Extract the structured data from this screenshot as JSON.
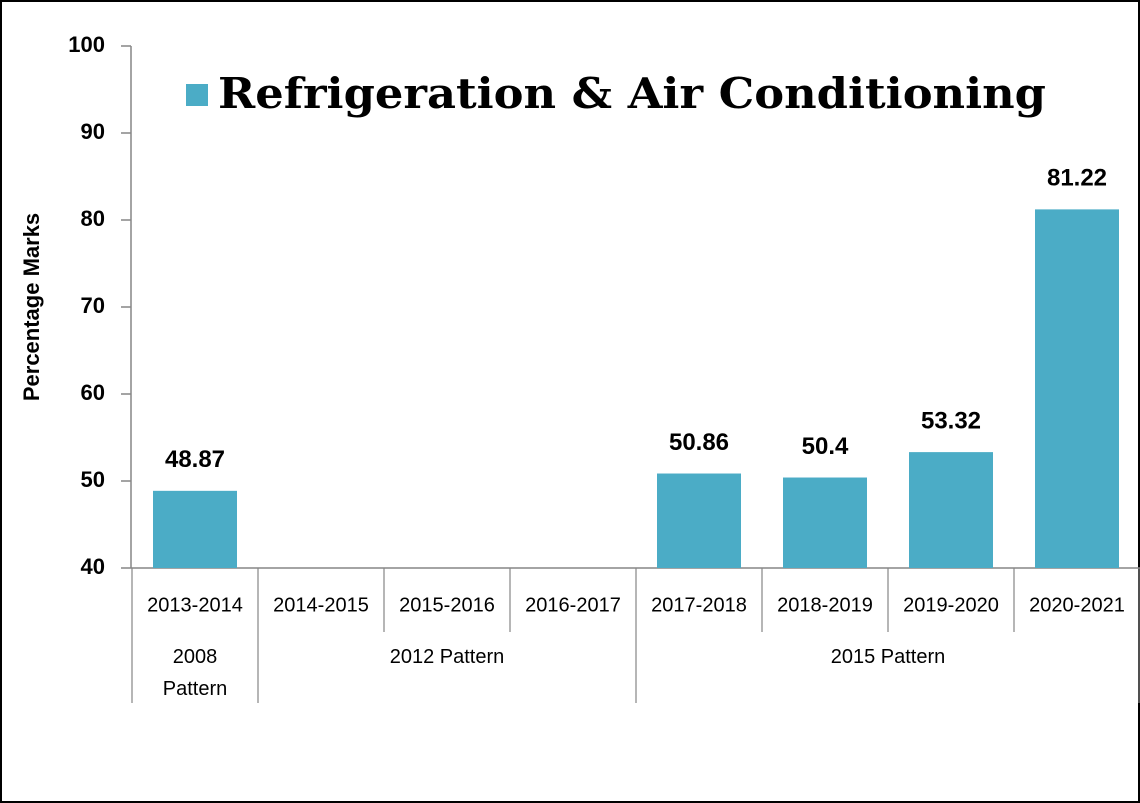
{
  "chart_data": {
    "type": "bar",
    "ylabel": "Percentage Marks",
    "categories": [
      "2013-2014",
      "2014-2015",
      "2015-2016",
      "2016-2017",
      "2017-2018",
      "2018-2019",
      "2019-2020",
      "2020-2021"
    ],
    "groups": [
      {
        "label": "2008 Pattern",
        "span": 1
      },
      {
        "label": "2012 Pattern",
        "span": 3
      },
      {
        "label": "2015 Pattern",
        "span": 4
      }
    ],
    "series": [
      {
        "name": "Refrigeration & Air Conditioning",
        "color": "#4bacc6",
        "values": [
          48.87,
          null,
          null,
          null,
          50.86,
          50.4,
          53.32,
          81.22
        ]
      }
    ],
    "ylim": [
      40,
      100
    ],
    "yticks": [
      40,
      50,
      60,
      70,
      80,
      90,
      100
    ],
    "grid": false,
    "legend": "top"
  }
}
